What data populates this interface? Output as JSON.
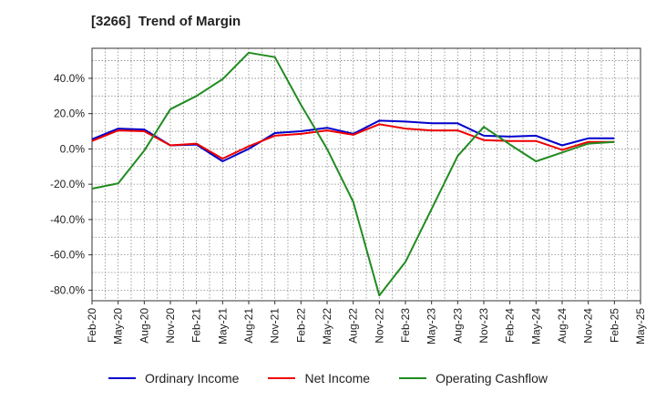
{
  "chart_data": {
    "type": "line",
    "title": "[3266]  Trend of Margin",
    "x": [
      "Feb-20",
      "May-20",
      "Aug-20",
      "Nov-20",
      "Feb-21",
      "May-21",
      "Aug-21",
      "Nov-21",
      "Feb-22",
      "May-22",
      "Aug-22",
      "Nov-22",
      "Feb-23",
      "May-23",
      "Aug-23",
      "Nov-23",
      "Feb-24",
      "May-24",
      "Aug-24",
      "Nov-24",
      "Feb-25",
      "May-25"
    ],
    "yticks": [
      "40.0%",
      "20.0%",
      "0.0%",
      "-20.0%",
      "-40.0%",
      "-60.0%",
      "-80.0%"
    ],
    "ylim": [
      -86,
      57
    ],
    "grid": true,
    "legend_position": "bottom",
    "series": [
      {
        "name": "Ordinary Income",
        "color": "#0000cc",
        "values": [
          5.5,
          11.5,
          11,
          2,
          2.5,
          -7,
          0,
          9,
          10,
          12,
          8.5,
          16,
          15.5,
          14.5,
          14.5,
          7.5,
          7,
          7.5,
          2,
          6,
          6,
          null
        ]
      },
      {
        "name": "Net Income",
        "color": "#ee0000",
        "values": [
          4.5,
          10.5,
          10,
          2,
          3,
          -5.5,
          1.5,
          7.5,
          8.5,
          10.5,
          8,
          14,
          11.5,
          10.5,
          10.5,
          5,
          4.5,
          4.5,
          -0.5,
          4,
          4,
          null
        ]
      },
      {
        "name": "Operating Cashflow",
        "color": "#228b22",
        "values": [
          -22.5,
          -19.5,
          -1,
          22.5,
          30,
          39.5,
          54.5,
          52,
          25,
          0,
          -30,
          -83,
          -64,
          -34,
          -4,
          12.5,
          2.5,
          -7,
          -2,
          3,
          4,
          null
        ]
      }
    ]
  }
}
